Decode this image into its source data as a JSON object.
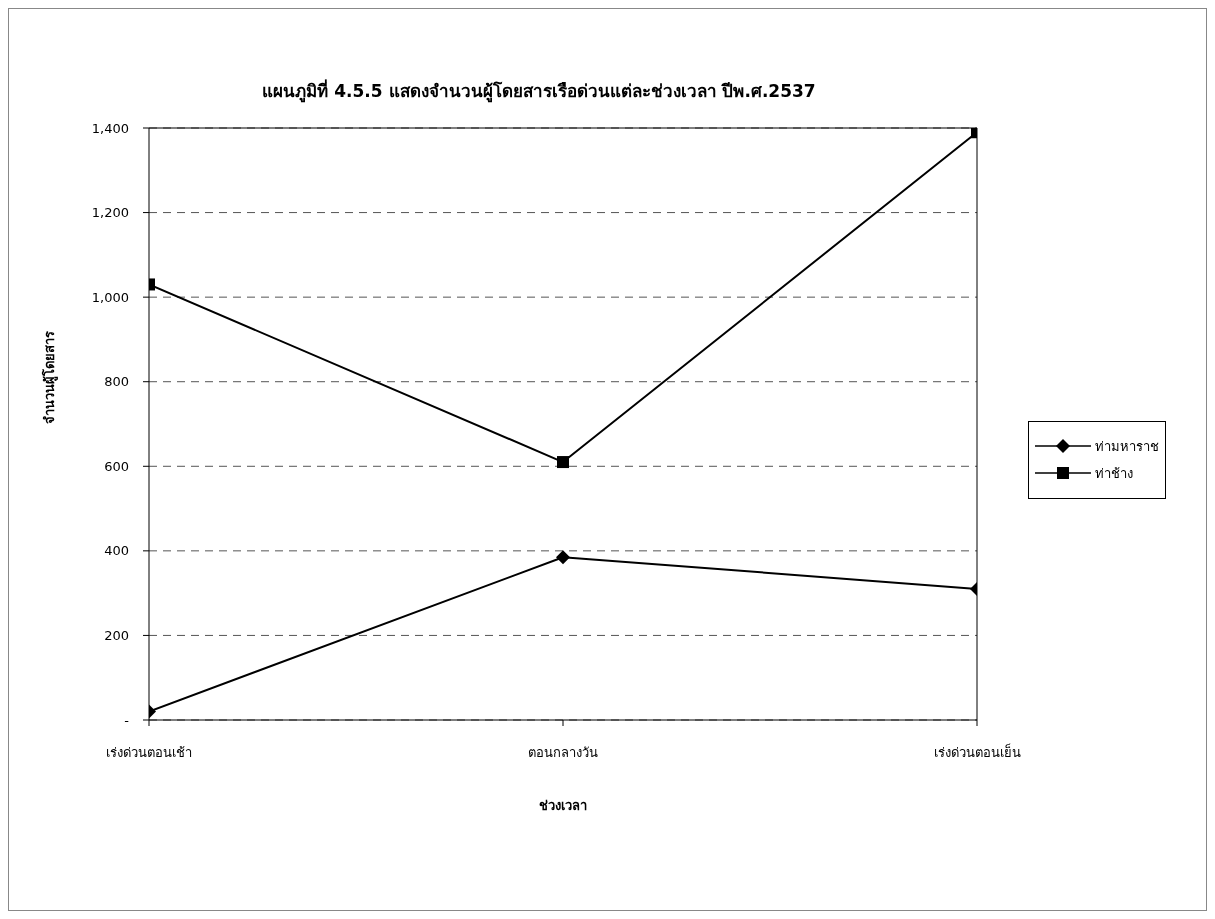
{
  "chart_data": {
    "type": "line",
    "title": "แผนภูมิที่ 4.5.5 แสดงจำนวนผู้โดยสารเรือด่วนแต่ละช่วงเวลา ปีพ.ศ.2537",
    "xlabel": "ช่วงเวลา",
    "ylabel": "จำนวนผู้โดยสาร",
    "categories": [
      "เร่งด่วนตอนเช้า",
      "ตอนกลางวัน",
      "เร่งด่วนตอนเย็น"
    ],
    "series": [
      {
        "name": "ท่ามหาราช",
        "color": "#000000",
        "marker": "diamond",
        "values": [
          20,
          385,
          310
        ]
      },
      {
        "name": "ท่าช้าง",
        "color": "#000000",
        "marker": "square",
        "values": [
          1030,
          610,
          1390
        ]
      }
    ],
    "ylim": [
      0,
      1400
    ],
    "yticks": [
      {
        "value": 0,
        "label": "-"
      },
      200,
      400,
      600,
      800,
      {
        "value": 1000,
        "label": "1,000"
      },
      {
        "value": 1200,
        "label": "1,200"
      },
      {
        "value": 1400,
        "label": "1,400"
      }
    ],
    "grid": "y",
    "legend": "right",
    "line_style": "solid"
  }
}
